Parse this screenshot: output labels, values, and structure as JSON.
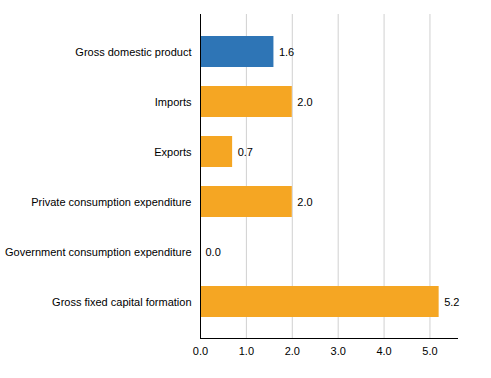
{
  "chart_data": {
    "type": "bar",
    "orientation": "horizontal",
    "categories": [
      "Gross fixed capital formation",
      "Government consumption expenditure",
      "Private consumption expenditure",
      "Exports",
      "Imports",
      "Gross domestic product"
    ],
    "values": [
      5.2,
      0.0,
      2.0,
      0.7,
      2.0,
      1.6
    ],
    "value_labels": [
      "5.2",
      "0.0",
      "2.0",
      "0.7",
      "2.0",
      "1.6"
    ],
    "colors": [
      "#f5a623",
      "#f5a623",
      "#f5a623",
      "#f5a623",
      "#f5a623",
      "#2e75b6"
    ],
    "xlim": [
      0,
      5.6
    ],
    "xticks": [
      0,
      1,
      2,
      3,
      4,
      5
    ],
    "grid": true,
    "data_labels": true
  }
}
